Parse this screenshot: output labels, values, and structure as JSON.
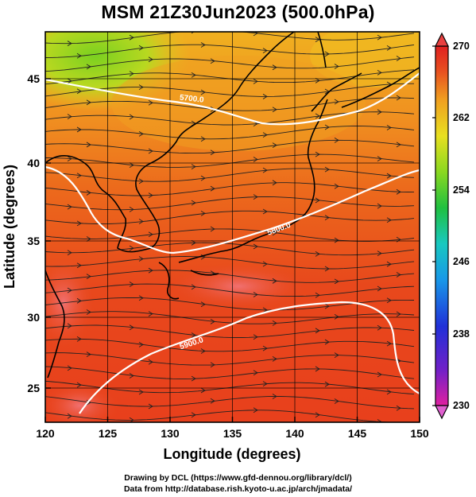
{
  "title": "MSM 21Z30Jun2023 (500.0hPa)",
  "xaxis": {
    "label": "Longitude (degrees)",
    "ticks": [
      "120",
      "125",
      "130",
      "135",
      "140",
      "145",
      "150"
    ],
    "range": [
      120,
      150
    ]
  },
  "yaxis": {
    "label": "Latitude  (degrees)",
    "ticks": [
      "25",
      "30",
      "35",
      "40",
      "45"
    ],
    "range": [
      22.4,
      47.6
    ]
  },
  "colorbar": {
    "ticks": [
      "270",
      "262",
      "254",
      "246",
      "238",
      "230"
    ],
    "range": [
      230,
      270
    ],
    "colors": [
      "#e0208a",
      "#6a20c8",
      "#2020d8",
      "#1a8ae8",
      "#18c8c0",
      "#20c040",
      "#8ad820",
      "#e8e020",
      "#f0a020",
      "#e85020",
      "#e02020"
    ]
  },
  "contours": [
    {
      "label": "5700.0"
    },
    {
      "label": "5800.0"
    },
    {
      "label": "5900.0"
    }
  ],
  "credits": {
    "line1": "Drawing by DCL (https://www.gfd-dennou.org/library/dcl/)",
    "line2": "Data from http://database.rish.kyoto-u.ac.jp/arch/jmadata/"
  }
}
